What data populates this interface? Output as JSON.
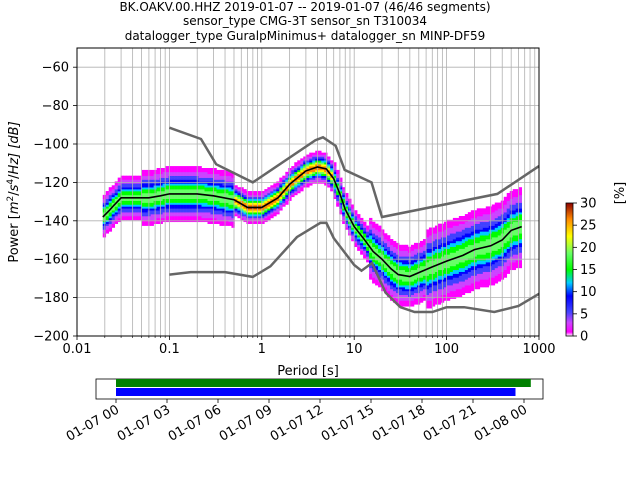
{
  "chart_data": {
    "type": "heatmap",
    "title_lines": [
      "BK.OAKV.00.HHZ   2019-01-07 -- 2019-01-07  (46/46 segments)",
      "sensor_type CMG-3T sensor_sn T310034",
      "datalogger_type GuralpMinimus+ datalogger_sn MINP-DF59"
    ],
    "xlabel": "Period [s]",
    "ylabel": "Power [m²/s⁴/Hz] [dB]",
    "ylabel_parts": {
      "pre": "Power [",
      "m": "m",
      "two": "2",
      "sep1": "/",
      "s": "s",
      "four": "4",
      "sep2": "/",
      "hz": "Hz] [dB]"
    },
    "x_scale": "log",
    "xlim": [
      0.01,
      1000
    ],
    "ylim": [
      -200,
      -50
    ],
    "x_ticks": [
      {
        "value": 0.01,
        "label": "0.01"
      },
      {
        "value": 0.1,
        "label": "0.1"
      },
      {
        "value": 1,
        "label": "1"
      },
      {
        "value": 10,
        "label": "10"
      },
      {
        "value": 100,
        "label": "100"
      },
      {
        "value": 1000,
        "label": "1000"
      }
    ],
    "y_ticks": [
      {
        "value": -60,
        "label": "−60"
      },
      {
        "value": -80,
        "label": "−80"
      },
      {
        "value": -100,
        "label": "−100"
      },
      {
        "value": -120,
        "label": "−120"
      },
      {
        "value": -140,
        "label": "−140"
      },
      {
        "value": -160,
        "label": "−160"
      },
      {
        "value": -180,
        "label": "−180"
      },
      {
        "value": -200,
        "label": "−200"
      }
    ],
    "grid": true,
    "new_high_noise_model": [
      [
        0.1,
        -91.5
      ],
      [
        0.22,
        -97.4
      ],
      [
        0.32,
        -110.5
      ],
      [
        0.8,
        -120
      ],
      [
        3.8,
        -98
      ],
      [
        4.6,
        -96.5
      ],
      [
        6.3,
        -101
      ],
      [
        7.9,
        -113.5
      ],
      [
        15.4,
        -120
      ],
      [
        20,
        -138
      ],
      [
        354.8,
        -126
      ],
      [
        1000,
        -111.5
      ]
    ],
    "new_low_noise_model": [
      [
        0.1,
        -168
      ],
      [
        0.17,
        -166.7
      ],
      [
        0.4,
        -166.7
      ],
      [
        0.8,
        -169.2
      ],
      [
        1.24,
        -163.7
      ],
      [
        2.4,
        -148.5
      ],
      [
        4.3,
        -141.1
      ],
      [
        5,
        -141.1
      ],
      [
        6,
        -149
      ],
      [
        10,
        -163
      ],
      [
        12,
        -166
      ],
      [
        15.6,
        -162
      ],
      [
        21.9,
        -177.5
      ],
      [
        31.6,
        -185
      ],
      [
        45,
        -187.5
      ],
      [
        70,
        -187.5
      ],
      [
        100,
        -185
      ],
      [
        154.5,
        -185
      ],
      [
        328.6,
        -187.5
      ],
      [
        600,
        -184.4
      ],
      [
        1000,
        -178
      ]
    ],
    "median_curve": [
      [
        0.019,
        -138
      ],
      [
        0.022,
        -135
      ],
      [
        0.025,
        -132
      ],
      [
        0.03,
        -128
      ],
      [
        0.04,
        -128
      ],
      [
        0.06,
        -128
      ],
      [
        0.08,
        -127
      ],
      [
        0.1,
        -126
      ],
      [
        0.15,
        -126
      ],
      [
        0.2,
        -126
      ],
      [
        0.3,
        -127
      ],
      [
        0.5,
        -129
      ],
      [
        0.7,
        -133
      ],
      [
        1,
        -133
      ],
      [
        1.5,
        -128
      ],
      [
        2,
        -121
      ],
      [
        3,
        -114
      ],
      [
        4,
        -112
      ],
      [
        5,
        -113
      ],
      [
        6,
        -118
      ],
      [
        7,
        -126
      ],
      [
        8,
        -134
      ],
      [
        10,
        -143
      ],
      [
        13,
        -150
      ],
      [
        16,
        -156
      ],
      [
        20,
        -160
      ],
      [
        25,
        -165
      ],
      [
        30,
        -168
      ],
      [
        40,
        -169
      ],
      [
        50,
        -167
      ],
      [
        70,
        -164
      ],
      [
        100,
        -161
      ],
      [
        150,
        -158
      ],
      [
        200,
        -155
      ],
      [
        300,
        -153
      ],
      [
        400,
        -150
      ],
      [
        500,
        -145
      ],
      [
        650,
        -143
      ]
    ],
    "colorbar": {
      "label": "[%]",
      "range": [
        0,
        30
      ],
      "ticks": [
        {
          "value": 0,
          "label": "0"
        },
        {
          "value": 5,
          "label": "5"
        },
        {
          "value": 10,
          "label": "10"
        },
        {
          "value": 15,
          "label": "15"
        },
        {
          "value": 20,
          "label": "20"
        },
        {
          "value": 25,
          "label": "25"
        },
        {
          "value": 30,
          "label": "30"
        }
      ]
    },
    "timeline": {
      "range": [
        "2019-01-07 00:00",
        "2019-01-08 03:00"
      ],
      "ticks": [
        {
          "hours": 0,
          "label": "01-07 00"
        },
        {
          "hours": 3,
          "label": "01-07 03"
        },
        {
          "hours": 6,
          "label": "01-07 06"
        },
        {
          "hours": 9,
          "label": "01-07 09"
        },
        {
          "hours": 12,
          "label": "01-07 12"
        },
        {
          "hours": 15,
          "label": "01-07 15"
        },
        {
          "hours": 18,
          "label": "01-07 18"
        },
        {
          "hours": 21,
          "label": "01-07 21"
        },
        {
          "hours": 24,
          "label": "01-08 00"
        }
      ],
      "data_coverage": {
        "start_hours": 0,
        "end_hours": 23.5,
        "color": "#0000ff"
      },
      "processed_coverage": {
        "start_hours": 0,
        "end_hours": 24.4,
        "color": "#008000"
      }
    }
  }
}
